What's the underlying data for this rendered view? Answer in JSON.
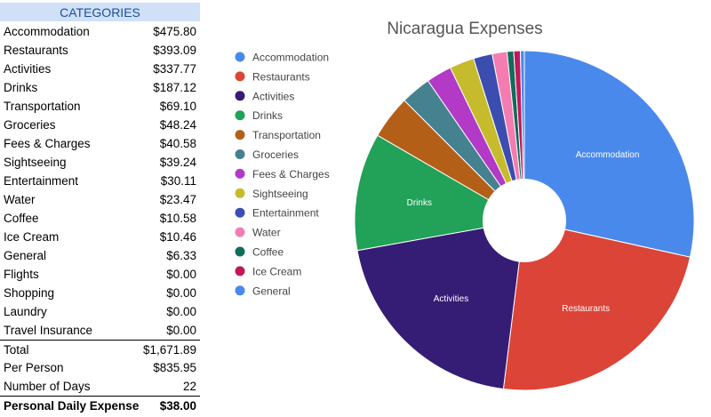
{
  "table": {
    "header": "CATEGORIES",
    "rows": [
      {
        "label": "Accommodation",
        "value": "$475.80"
      },
      {
        "label": "Restaurants",
        "value": "$393.09"
      },
      {
        "label": "Activities",
        "value": "$337.77"
      },
      {
        "label": "Drinks",
        "value": "$187.12"
      },
      {
        "label": "Transportation",
        "value": "$69.10"
      },
      {
        "label": "Groceries",
        "value": "$48.24"
      },
      {
        "label": "Fees & Charges",
        "value": "$40.58"
      },
      {
        "label": "Sightseeing",
        "value": "$39.24"
      },
      {
        "label": "Entertainment",
        "value": "$30.11"
      },
      {
        "label": "Water",
        "value": "$23.47"
      },
      {
        "label": "Coffee",
        "value": "$10.58"
      },
      {
        "label": "Ice Cream",
        "value": "$10.46"
      },
      {
        "label": "General",
        "value": "$6.33"
      },
      {
        "label": "Flights",
        "value": "$0.00"
      },
      {
        "label": "Shopping",
        "value": "$0.00"
      },
      {
        "label": "Laundry",
        "value": "$0.00"
      },
      {
        "label": "Travel Insurance",
        "value": "$0.00"
      }
    ],
    "summary": {
      "total_label": "Total",
      "total_value": "$1,671.89",
      "per_person_label": "Per Person",
      "per_person_value": "$835.95",
      "days_label": "Number of Days",
      "days_value": "22",
      "daily_label": "Personal Daily Expense",
      "daily_value": "$38.00"
    }
  },
  "chart_data": {
    "type": "pie",
    "donut": true,
    "title": "Nicaragua Expenses",
    "legend_position": "left",
    "categories": [
      "Accommodation",
      "Restaurants",
      "Activities",
      "Drinks",
      "Transportation",
      "Groceries",
      "Fees & Charges",
      "Sightseeing",
      "Entertainment",
      "Water",
      "Coffee",
      "Ice Cream",
      "General"
    ],
    "values": [
      475.8,
      393.09,
      337.77,
      187.12,
      69.1,
      48.24,
      40.58,
      39.24,
      30.11,
      23.47,
      10.58,
      10.46,
      6.33
    ],
    "colors": [
      "#4a89ec",
      "#db4437",
      "#351c75",
      "#22a158",
      "#b45f17",
      "#45818e",
      "#b23ac6",
      "#c6bb2c",
      "#3c4db0",
      "#f47cb0",
      "#136b5a",
      "#c2185b",
      "#4a89ec"
    ],
    "slice_labels": [
      "Accommodation",
      "Restaurants",
      "Activities",
      "Drinks",
      "",
      "",
      "",
      "",
      "",
      "",
      "",
      "",
      ""
    ]
  }
}
